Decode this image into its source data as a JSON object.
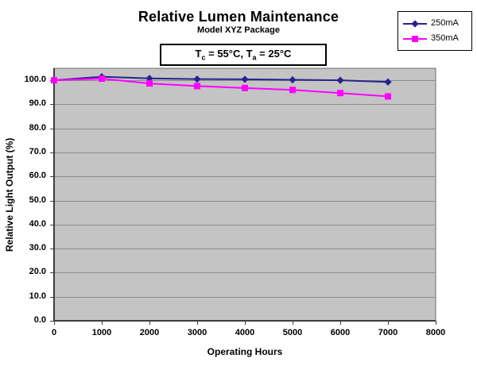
{
  "chart_data": {
    "type": "line",
    "title": "Relative Lumen Maintenance",
    "subtitle": "Model XYZ Package",
    "annotation": {
      "t1": "T",
      "s1": "c",
      "t2": " = 55°C, T",
      "s2": "a",
      "t3": " = 25°C"
    },
    "xlabel": "Operating Hours",
    "ylabel": "Relative Light Output (%)",
    "x": [
      0,
      1000,
      2000,
      3000,
      4000,
      5000,
      6000,
      7000
    ],
    "series": [
      {
        "name": "250mA",
        "marker": "diamond",
        "color": "#28238C",
        "values": [
          100.0,
          101.5,
          100.8,
          100.5,
          100.4,
          100.2,
          100.0,
          99.3
        ]
      },
      {
        "name": "350mA",
        "marker": "square",
        "color": "#FF00FF",
        "values": [
          100.0,
          100.7,
          98.7,
          97.6,
          96.8,
          96.0,
          94.7,
          93.3
        ]
      }
    ],
    "xlim": [
      0,
      8000
    ],
    "ylim": [
      0,
      105
    ],
    "xtick_values": [
      0,
      1000,
      2000,
      3000,
      4000,
      5000,
      6000,
      7000,
      8000
    ],
    "xtick_labels": [
      "0",
      "1000",
      "2000",
      "3000",
      "4000",
      "5000",
      "6000",
      "7000",
      "8000"
    ],
    "ytick_values": [
      0,
      10,
      20,
      30,
      40,
      50,
      60,
      70,
      80,
      90,
      100
    ],
    "ytick_labels": [
      "0.0",
      "10.0",
      "20.0",
      "30.0",
      "40.0",
      "50.0",
      "60.0",
      "70.0",
      "80.0",
      "90.0",
      "100.0"
    ],
    "grid": true,
    "legend_position": "top-right",
    "colors": {
      "plot_bg": "#C4C4C4",
      "grid": "#8C8C8C",
      "plot_border": "#6E6E6E",
      "axis": "#3C3C3C",
      "text": "#000000"
    }
  }
}
